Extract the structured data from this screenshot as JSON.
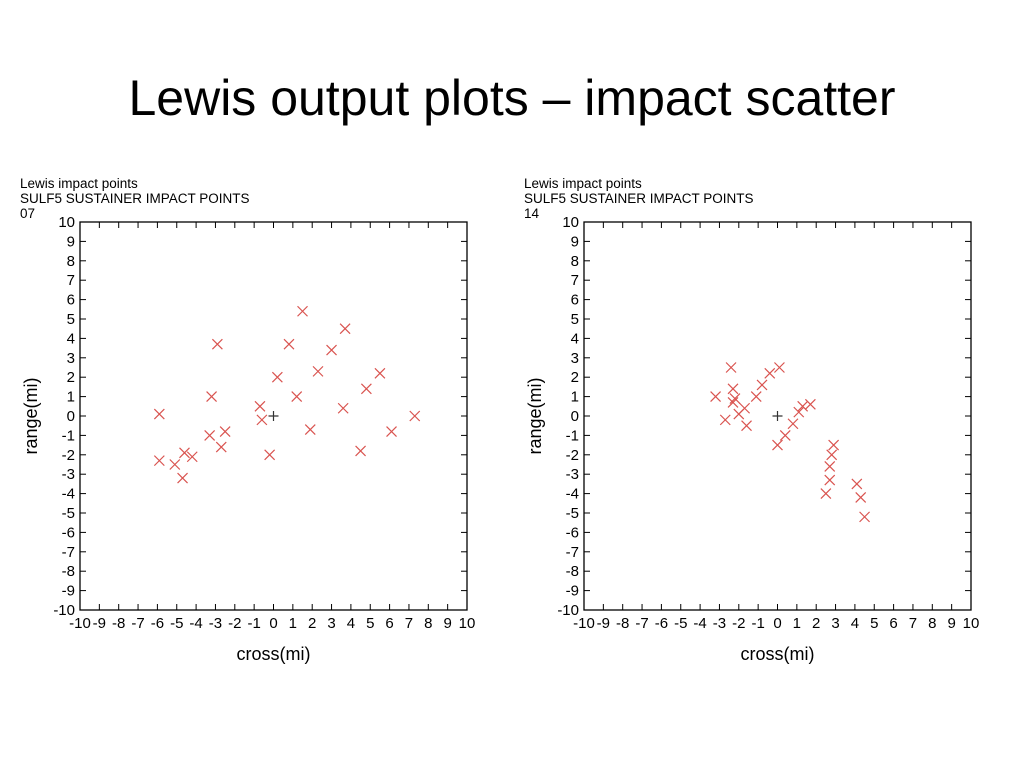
{
  "slide": {
    "title": "Lewis output plots – impact scatter"
  },
  "chart_data": [
    {
      "type": "scatter",
      "header": [
        "Lewis impact points",
        "SULF5  SUSTAINER IMPACT POINTS",
        "07"
      ],
      "xlabel": "cross(mi)",
      "ylabel": "range(mi)",
      "xlim": [
        -10,
        10
      ],
      "ylim": [
        -10,
        10
      ],
      "xticks": [
        -10,
        -9,
        -8,
        -7,
        -6,
        -5,
        -4,
        -3,
        -2,
        -1,
        0,
        1,
        2,
        3,
        4,
        5,
        6,
        7,
        8,
        9,
        10
      ],
      "yticks": [
        10,
        9,
        8,
        7,
        6,
        5,
        4,
        3,
        2,
        1,
        0,
        -1,
        -2,
        -3,
        -4,
        -5,
        -6,
        -7,
        -8,
        -9,
        -10
      ],
      "grid": false,
      "marker_color": "#d9534f",
      "origin_color": "#333333",
      "origin": [
        0,
        0
      ],
      "points": [
        [
          -5.9,
          0.1
        ],
        [
          -5.9,
          -2.3
        ],
        [
          -5.1,
          -2.5
        ],
        [
          -4.7,
          -3.2
        ],
        [
          -4.6,
          -1.9
        ],
        [
          -4.2,
          -2.1
        ],
        [
          -3.3,
          -1.0
        ],
        [
          -3.2,
          1.0
        ],
        [
          -2.9,
          3.7
        ],
        [
          -2.7,
          -1.6
        ],
        [
          -2.5,
          -0.8
        ],
        [
          -0.7,
          0.5
        ],
        [
          -0.6,
          -0.2
        ],
        [
          -0.2,
          -2.0
        ],
        [
          0.2,
          2.0
        ],
        [
          0.8,
          3.7
        ],
        [
          1.2,
          1.0
        ],
        [
          1.5,
          5.4
        ],
        [
          1.9,
          -0.7
        ],
        [
          2.3,
          2.3
        ],
        [
          3.0,
          3.4
        ],
        [
          3.6,
          0.4
        ],
        [
          3.7,
          4.5
        ],
        [
          4.5,
          -1.8
        ],
        [
          4.8,
          1.4
        ],
        [
          5.5,
          2.2
        ],
        [
          6.1,
          -0.8
        ],
        [
          7.3,
          0.0
        ]
      ]
    },
    {
      "type": "scatter",
      "header": [
        "Lewis impact points",
        "SULF5  SUSTAINER IMPACT POINTS",
        "14"
      ],
      "xlabel": "cross(mi)",
      "ylabel": "range(mi)",
      "xlim": [
        -10,
        10
      ],
      "ylim": [
        -10,
        10
      ],
      "xticks": [
        -10,
        -9,
        -8,
        -7,
        -6,
        -5,
        -4,
        -3,
        -2,
        -1,
        0,
        1,
        2,
        3,
        4,
        5,
        6,
        7,
        8,
        9,
        10
      ],
      "yticks": [
        10,
        9,
        8,
        7,
        6,
        5,
        4,
        3,
        2,
        1,
        0,
        -1,
        -2,
        -3,
        -4,
        -5,
        -6,
        -7,
        -8,
        -9,
        -10
      ],
      "grid": false,
      "marker_color": "#d9534f",
      "origin_color": "#333333",
      "origin": [
        0,
        0
      ],
      "points": [
        [
          -3.2,
          1.0
        ],
        [
          -2.7,
          -0.2
        ],
        [
          -2.4,
          2.5
        ],
        [
          -2.3,
          1.4
        ],
        [
          -2.3,
          0.7
        ],
        [
          -2.2,
          0.9
        ],
        [
          -2.0,
          0.1
        ],
        [
          -1.7,
          0.4
        ],
        [
          -1.6,
          -0.5
        ],
        [
          -1.1,
          1.0
        ],
        [
          -0.8,
          1.6
        ],
        [
          -0.4,
          2.2
        ],
        [
          0.1,
          2.5
        ],
        [
          0.0,
          -1.5
        ],
        [
          0.4,
          -1.0
        ],
        [
          0.8,
          -0.4
        ],
        [
          1.1,
          0.2
        ],
        [
          1.3,
          0.5
        ],
        [
          1.7,
          0.6
        ],
        [
          2.5,
          -4.0
        ],
        [
          2.7,
          -3.3
        ],
        [
          2.7,
          -2.6
        ],
        [
          2.8,
          -2.0
        ],
        [
          2.9,
          -1.5
        ],
        [
          4.1,
          -3.5
        ],
        [
          4.3,
          -4.2
        ],
        [
          4.5,
          -5.2
        ]
      ]
    }
  ]
}
